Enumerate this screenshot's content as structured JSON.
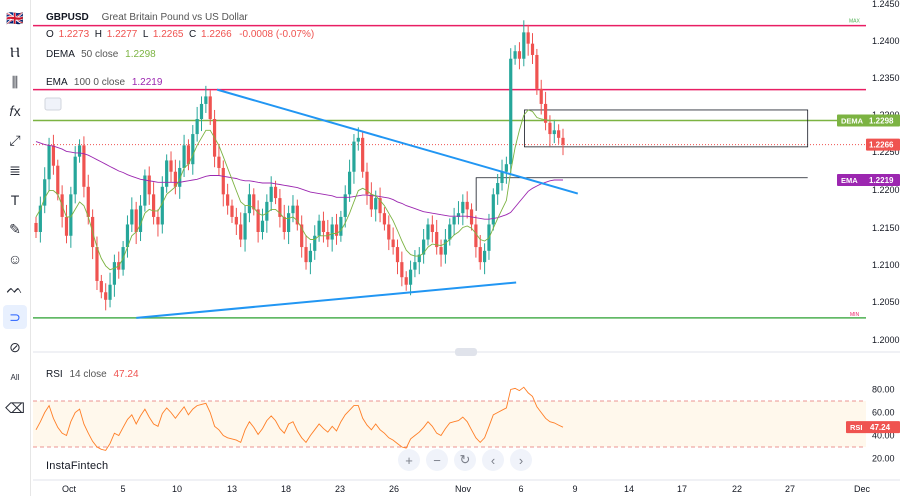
{
  "toolbar": {
    "items": [
      {
        "name": "flag-icon",
        "glyph": "🇬🇧"
      },
      {
        "name": "crosshair-icon",
        "glyph": "Ⲏ"
      },
      {
        "name": "candles-icon",
        "glyph": "⫼"
      },
      {
        "name": "indicators-icon",
        "glyph": "𝑓x"
      },
      {
        "name": "trendline-icon",
        "glyph": "⤢"
      },
      {
        "name": "fib-icon",
        "glyph": "≣"
      },
      {
        "name": "text-icon",
        "glyph": "T"
      },
      {
        "name": "brush-icon",
        "glyph": "✎"
      },
      {
        "name": "emoji-icon",
        "glyph": "☺"
      },
      {
        "name": "pattern-icon",
        "glyph": "ᨓ"
      },
      {
        "name": "magnet-icon",
        "glyph": "⊃"
      },
      {
        "name": "hide-icon",
        "glyph": "⊘"
      },
      {
        "name": "all-icon",
        "glyph": "All"
      },
      {
        "name": "delete-icon",
        "glyph": "⌫"
      }
    ]
  },
  "legend": {
    "symbol": "GBPUSD",
    "description": "Great Britain Pound vs US Dollar",
    "ohlc": {
      "o_label": "O",
      "o": "1.2273",
      "h_label": "H",
      "h": "1.2277",
      "l_label": "L",
      "l": "1.2265",
      "c_label": "C",
      "c": "1.2266",
      "change": "-0.0008 (-0.07%)"
    },
    "dema": {
      "label": "DEMA",
      "params": "50 close",
      "value": "1.2298"
    },
    "ema": {
      "label": "EMA",
      "params": "100 0 close",
      "value": "1.2219"
    },
    "rsi": {
      "label": "RSI",
      "params": "14 close",
      "value": "47.24"
    }
  },
  "watermark": "InstaFintech",
  "nav": {
    "plus": "+",
    "minus": "−",
    "reset": "↻",
    "left": "‹",
    "right": "›"
  },
  "colors": {
    "up": "#26a69a",
    "down": "#ef5350",
    "dema": "#7cb342",
    "ema": "#9c27b0",
    "trend": "#2196f3",
    "magenta": "#e91e63",
    "green_line": "#4caf50",
    "rsi": "#ff7f27"
  },
  "chart_data": {
    "type": "candlestick",
    "y_axis": {
      "ticks": [
        "1.2450",
        "1.2400",
        "1.2350",
        "1.2300",
        "1.2250",
        "1.2200",
        "1.2150",
        "1.2100",
        "1.2050",
        "1.2000"
      ],
      "range": [
        1.2,
        1.245
      ]
    },
    "x_axis": {
      "ticks": [
        "Oct",
        "5",
        "10",
        "13",
        "18",
        "23",
        "26",
        "Nov",
        "6",
        "9",
        "14",
        "17",
        "22",
        "27",
        "Dec"
      ]
    },
    "max_label": "MAX",
    "min_label": "MIN",
    "price_badges": [
      {
        "label": "DEMA",
        "value": "1.2298",
        "color": "#7cb342"
      },
      {
        "value": "1.2266",
        "color": "#ef5350"
      },
      {
        "label": "EMA",
        "value": "1.2219",
        "color": "#9c27b0"
      }
    ],
    "horizontal_levels": [
      {
        "value": 1.2424,
        "color": "#e91e63"
      },
      {
        "value": 1.2339,
        "color": "#e91e63"
      },
      {
        "value": 1.2298,
        "color": "#7cb342"
      },
      {
        "value": 1.2036,
        "color": "#4caf50"
      }
    ],
    "trendlines": [
      {
        "from": [
          0.221,
          1.2339
        ],
        "to": [
          0.654,
          1.2201
        ],
        "color": "#2196f3"
      },
      {
        "from": [
          0.124,
          1.2036
        ],
        "to": [
          0.58,
          1.2083
        ],
        "color": "#2196f3"
      }
    ],
    "rectangles": [
      {
        "from": [
          0.532,
          1.2222
        ],
        "to": [
          0.93,
          1.2222
        ]
      },
      {
        "from": [
          0.59,
          1.2312
        ],
        "to": [
          0.93,
          1.2263
        ]
      }
    ],
    "closes": [
      1.215,
      1.2185,
      1.222,
      1.2265,
      1.2238,
      1.22,
      1.217,
      1.2145,
      1.22,
      1.225,
      1.2265,
      1.221,
      1.217,
      1.213,
      1.2085,
      1.207,
      1.206,
      1.208,
      1.211,
      1.21,
      1.213,
      1.216,
      1.218,
      1.215,
      1.2185,
      1.2225,
      1.22,
      1.217,
      1.216,
      1.221,
      1.2245,
      1.223,
      1.221,
      1.2235,
      1.2265,
      1.224,
      1.228,
      1.23,
      1.232,
      1.233,
      1.23,
      1.225,
      1.2235,
      1.22,
      1.2185,
      1.217,
      1.216,
      1.214,
      1.2175,
      1.22,
      1.218,
      1.215,
      1.2165,
      1.219,
      1.221,
      1.2195,
      1.217,
      1.215,
      1.2175,
      1.2185,
      1.216,
      1.213,
      1.211,
      1.2125,
      1.2145,
      1.2165,
      1.215,
      1.214,
      1.216,
      1.2145,
      1.217,
      1.22,
      1.223,
      1.227,
      1.2275,
      1.223,
      1.22,
      1.218,
      1.2195,
      1.2175,
      1.216,
      1.214,
      1.213,
      1.211,
      1.209,
      1.208,
      1.21,
      1.211,
      1.212,
      1.214,
      1.216,
      1.215,
      1.213,
      1.212,
      1.214,
      1.216,
      1.217,
      1.2175,
      1.219,
      1.218,
      1.216,
      1.213,
      1.211,
      1.2125,
      1.216,
      1.22,
      1.2215,
      1.223,
      1.224,
      1.238,
      1.239,
      1.238,
      1.2415,
      1.24,
      1.2385,
      1.234,
      1.232,
      1.2295,
      1.228,
      1.2285,
      1.2275,
      1.2266
    ],
    "dema_values": [
      1.217,
      1.218,
      1.2195,
      1.2205,
      1.2205,
      1.22,
      1.2185,
      1.217,
      1.217,
      1.218,
      1.219,
      1.2185,
      1.217,
      1.215,
      1.213,
      1.2115,
      1.2105,
      1.21,
      1.2102,
      1.2105,
      1.2115,
      1.213,
      1.2145,
      1.215,
      1.216,
      1.2175,
      1.218,
      1.2178,
      1.2178,
      1.2188,
      1.22,
      1.2205,
      1.221,
      1.222,
      1.2235,
      1.224,
      1.2252,
      1.2265,
      1.2275,
      1.2285,
      1.2285,
      1.2275,
      1.2265,
      1.225,
      1.2235,
      1.222,
      1.2205,
      1.219,
      1.2185,
      1.2185,
      1.2182,
      1.2175,
      1.2172,
      1.2175,
      1.218,
      1.218,
      1.2175,
      1.2168,
      1.2168,
      1.217,
      1.2165,
      1.2155,
      1.2145,
      1.214,
      1.214,
      1.2145,
      1.2145,
      1.2145,
      1.2148,
      1.2148,
      1.2152,
      1.2162,
      1.2175,
      1.219,
      1.2205,
      1.2208,
      1.2205,
      1.22,
      1.2198,
      1.2192,
      1.2185,
      1.2175,
      1.2165,
      1.2152,
      1.2138,
      1.2126,
      1.212,
      1.2118,
      1.2118,
      1.2122,
      1.213,
      1.2134,
      1.2133,
      1.2132,
      1.2135,
      1.214,
      1.2146,
      1.215,
      1.2156,
      1.2158,
      1.2155,
      1.2148,
      1.214,
      1.2138,
      1.2142,
      1.2155,
      1.2168,
      1.218,
      1.2192,
      1.223,
      1.2262,
      1.2285,
      1.2305,
      1.2312,
      1.231,
      1.2302,
      1.23,
      1.2299,
      1.2298,
      1.2298,
      1.2298,
      1.2298
    ],
    "ema_values": [
      1.227,
      1.2268,
      1.2266,
      1.2265,
      1.2264,
      1.2262,
      1.226,
      1.2257,
      1.2256,
      1.2255,
      1.2255,
      1.2254,
      1.2252,
      1.2249,
      1.2246,
      1.2243,
      1.224,
      1.2237,
      1.2234,
      1.2231,
      1.2229,
      1.2226,
      1.2224,
      1.2222,
      1.222,
      1.2219,
      1.2218,
      1.2217,
      1.2216,
      1.2216,
      1.2216,
      1.2216,
      1.2216,
      1.2216,
      1.2217,
      1.2218,
      1.2219,
      1.222,
      1.2222,
      1.2224,
      1.2225,
      1.2225,
      1.2225,
      1.2224,
      1.2223,
      1.2222,
      1.2221,
      1.2219,
      1.2218,
      1.2218,
      1.2217,
      1.2216,
      1.2215,
      1.2215,
      1.2215,
      1.2214,
      1.2213,
      1.2212,
      1.2211,
      1.221,
      1.2209,
      1.2207,
      1.2205,
      1.2203,
      1.2202,
      1.2201,
      1.22,
      1.2199,
      1.2198,
      1.2196,
      1.2196,
      1.2196,
      1.2196,
      1.2197,
      1.2198,
      1.2199,
      1.2199,
      1.2198,
      1.2198,
      1.2197,
      1.2196,
      1.2195,
      1.2193,
      1.219,
      1.2188,
      1.2185,
      1.2183,
      1.2181,
      1.2179,
      1.2177,
      1.2176,
      1.2175,
      1.2174,
      1.2173,
      1.2172,
      1.2171,
      1.2171,
      1.2171,
      1.2171,
      1.2171,
      1.217,
      1.2169,
      1.2168,
      1.2167,
      1.2167,
      1.2168,
      1.2169,
      1.2171,
      1.2173,
      1.2176,
      1.2183,
      1.219,
      1.2197,
      1.2204,
      1.2208,
      1.2211,
      1.2214,
      1.2216,
      1.2218,
      1.2219,
      1.2219,
      1.2219
    ],
    "rsi": {
      "ticks": [
        "80.00",
        "60.00",
        "40.00",
        "20.00"
      ],
      "range": [
        10,
        90
      ],
      "levels": [
        70,
        30
      ],
      "values": [
        45,
        52,
        60,
        66,
        55,
        47,
        42,
        40,
        52,
        60,
        63,
        50,
        42,
        35,
        30,
        28,
        27,
        33,
        42,
        40,
        47,
        54,
        58,
        50,
        57,
        63,
        56,
        50,
        48,
        59,
        64,
        60,
        55,
        60,
        65,
        58,
        63,
        66,
        67,
        68,
        60,
        48,
        45,
        40,
        38,
        37,
        36,
        34,
        45,
        52,
        47,
        41,
        46,
        53,
        57,
        53,
        46,
        42,
        50,
        52,
        44,
        38,
        34,
        40,
        45,
        50,
        46,
        43,
        48,
        44,
        52,
        58,
        62,
        66,
        66,
        55,
        49,
        45,
        50,
        45,
        42,
        38,
        36,
        33,
        30,
        29,
        37,
        40,
        43,
        47,
        52,
        48,
        42,
        40,
        46,
        51,
        52,
        53,
        56,
        52,
        45,
        38,
        34,
        38,
        48,
        58,
        60,
        62,
        64,
        80,
        81,
        79,
        82,
        77,
        74,
        65,
        60,
        55,
        52,
        51,
        49,
        47.24
      ]
    }
  }
}
